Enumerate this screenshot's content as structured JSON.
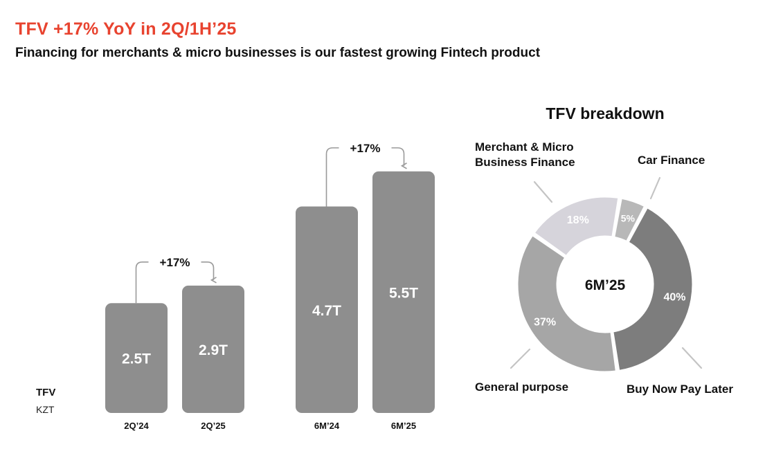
{
  "header": {
    "title": "TFV +17% YoY in 2Q/1H’25",
    "subtitle": "Financing for merchants & micro businesses is our fastest growing Fintech product"
  },
  "metric": {
    "name": "TFV",
    "unit": "KZT"
  },
  "colors": {
    "accent": "#e8432f",
    "bar": "#8e8e8e",
    "merchant": "#d6d4db",
    "car": "#b8b8b8",
    "bnpl": "#7d7d7d",
    "general": "#a6a6a6"
  },
  "chart_data": [
    {
      "type": "bar",
      "categories": [
        "2Q’24",
        "2Q’25"
      ],
      "values": [
        2.5,
        2.9
      ],
      "data_labels": [
        "2.5T",
        "2.9T"
      ],
      "growth_label": "+17%",
      "title": "",
      "xlabel": "",
      "ylabel": "TFV",
      "unit": "KZT",
      "ylim": [
        0,
        5.5
      ],
      "grid": false
    },
    {
      "type": "bar",
      "categories": [
        "6M’24",
        "6M’25"
      ],
      "values": [
        4.7,
        5.5
      ],
      "data_labels": [
        "4.7T",
        "5.5T"
      ],
      "growth_label": "+17%",
      "title": "",
      "xlabel": "",
      "ylabel": "TFV",
      "unit": "KZT",
      "ylim": [
        0,
        5.5
      ],
      "grid": false
    },
    {
      "type": "pie",
      "donut": true,
      "title": "TFV breakdown",
      "center_label": "6M’25",
      "slices": [
        {
          "name": "Merchant & Micro Business Finance",
          "value": 18,
          "label": "18%"
        },
        {
          "name": "Car Finance",
          "value": 5,
          "label": "5%"
        },
        {
          "name": "Buy Now Pay Later",
          "value": 40,
          "label": "40%"
        },
        {
          "name": "General purpose",
          "value": 37,
          "label": "37%"
        }
      ],
      "legend": "external-labels"
    }
  ]
}
